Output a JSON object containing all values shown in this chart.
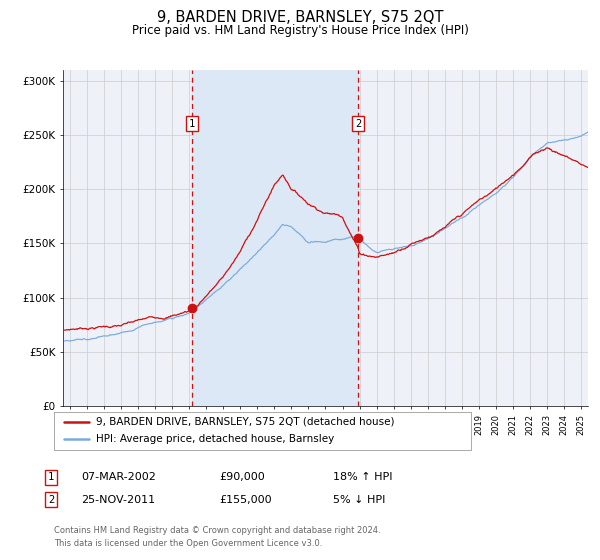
{
  "title": "9, BARDEN DRIVE, BARNSLEY, S75 2QT",
  "subtitle": "Price paid vs. HM Land Registry's House Price Index (HPI)",
  "title_fontsize": 10.5,
  "subtitle_fontsize": 8.5,
  "background_color": "#ffffff",
  "plot_bg_color": "#eef2f8",
  "grid_color": "#cccccc",
  "sale1_year": 2002.18,
  "sale1_price": 90000,
  "sale1_label": "1",
  "sale2_year": 2011.9,
  "sale2_price": 155000,
  "sale2_label": "2",
  "legend_line1": "9, BARDEN DRIVE, BARNSLEY, S75 2QT (detached house)",
  "legend_line2": "HPI: Average price, detached house, Barnsley",
  "footer1": "Contains HM Land Registry data © Crown copyright and database right 2024.",
  "footer2": "This data is licensed under the Open Government Licence v3.0.",
  "table_row1": [
    "1",
    "07-MAR-2002",
    "£90,000",
    "18% ↑ HPI"
  ],
  "table_row2": [
    "2",
    "25-NOV-2011",
    "£155,000",
    "5% ↓ HPI"
  ],
  "hpi_color": "#7aaadd",
  "price_color": "#cc1111",
  "shaded_fill_color": "#dce8f5",
  "ylim_min": 0,
  "ylim_max": 310000,
  "xlim_min": 1994.6,
  "xlim_max": 2025.4
}
